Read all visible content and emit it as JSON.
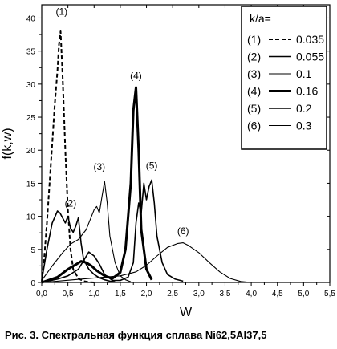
{
  "caption": "Рис. 3. Спектральная функция сплава Ni62,5Al37,5",
  "chart_data": {
    "type": "line",
    "xlabel": "W",
    "ylabel": "f(k,w)",
    "xlim": [
      0,
      5.5
    ],
    "ylim": [
      0,
      42
    ],
    "x_ticks": [
      "0,0",
      "0,5",
      "1,0",
      "1,5",
      "2,0",
      "2,5",
      "3,0",
      "3,5",
      "4,0",
      "4,5",
      "5,0",
      "5,5"
    ],
    "y_ticks": [
      "0",
      "5",
      "10",
      "15",
      "20",
      "25",
      "30",
      "35",
      "40"
    ],
    "legend_title": "k/a=",
    "legend_position": "top-right",
    "grid": false,
    "series": [
      {
        "name": "0.035",
        "label": "(1)",
        "style": "dashed",
        "width": 2.0,
        "x": [
          0,
          0.05,
          0.1,
          0.15,
          0.2,
          0.25,
          0.3,
          0.33,
          0.36,
          0.4,
          0.45,
          0.5,
          0.55,
          0.6,
          0.7,
          0.8,
          0.9,
          1.0
        ],
        "y": [
          0,
          4,
          9,
          15,
          21,
          27,
          32,
          36,
          38,
          31,
          20,
          11,
          5,
          2,
          0.6,
          0.2,
          0.05,
          0
        ]
      },
      {
        "name": "0.055",
        "label": "(2)",
        "style": "solid",
        "width": 1.6,
        "x": [
          0,
          0.1,
          0.2,
          0.3,
          0.35,
          0.45,
          0.5,
          0.55,
          0.6,
          0.65,
          0.7,
          0.75,
          0.8,
          0.9,
          1.0,
          1.1,
          1.2,
          1.3,
          1.4
        ],
        "y": [
          0.3,
          5,
          9,
          10.8,
          10.5,
          9,
          10,
          8.2,
          7.6,
          8.5,
          9.8,
          6,
          3.5,
          2,
          1.2,
          0.7,
          0.4,
          0.2,
          0.1
        ]
      },
      {
        "name": "0.1",
        "label": "(3)",
        "style": "solid",
        "width": 1.1,
        "x": [
          0,
          0.2,
          0.4,
          0.55,
          0.7,
          0.85,
          1.0,
          1.05,
          1.1,
          1.15,
          1.2,
          1.25,
          1.3,
          1.4,
          1.5,
          1.6,
          1.7
        ],
        "y": [
          0.3,
          2.5,
          4.5,
          5.8,
          6.5,
          8,
          11,
          11.5,
          10.5,
          13,
          15.3,
          12,
          7,
          3,
          1,
          0.4,
          0.1
        ]
      },
      {
        "name": "0.16",
        "label": "(4)",
        "style": "solid",
        "width": 3.0,
        "x": [
          0,
          0.3,
          0.5,
          0.65,
          0.75,
          0.85,
          0.95,
          1.05,
          1.2,
          1.35,
          1.5,
          1.6,
          1.7,
          1.75,
          1.8,
          1.85,
          1.9,
          2.0,
          2.1
        ],
        "y": [
          0,
          0.8,
          2,
          2.7,
          3.2,
          3,
          2.5,
          1.8,
          1,
          0.6,
          1.5,
          5,
          15,
          26,
          29.5,
          20,
          8,
          2,
          0.4
        ]
      },
      {
        "name": "0.2",
        "label": "(5)",
        "style": "solid",
        "width": 1.6,
        "x": [
          0,
          0.3,
          0.5,
          0.7,
          0.8,
          0.9,
          1.0,
          1.1,
          1.2,
          1.35,
          1.5,
          1.65,
          1.75,
          1.8,
          1.85,
          1.9,
          1.95,
          2.0,
          2.05,
          2.1,
          2.15,
          2.2,
          2.3,
          2.4,
          2.55,
          2.7
        ],
        "y": [
          0,
          0.5,
          1,
          2,
          3.3,
          4.6,
          4,
          2.8,
          1.2,
          0.3,
          0.3,
          0.8,
          3,
          9,
          12,
          10.5,
          15,
          12.5,
          14.5,
          15.5,
          12,
          7,
          3,
          1.2,
          0.5,
          0.2
        ]
      },
      {
        "name": "0.3",
        "label": "(6)",
        "style": "solid",
        "width": 1.1,
        "x": [
          0,
          0.3,
          0.6,
          0.9,
          1.2,
          1.5,
          1.8,
          2.0,
          2.2,
          2.4,
          2.6,
          2.7,
          2.8,
          3.0,
          3.2,
          3.4,
          3.6,
          3.8,
          4.0
        ],
        "y": [
          0,
          0.2,
          0.4,
          0.6,
          0.8,
          1.0,
          1.6,
          2.6,
          4.0,
          5.3,
          5.9,
          6.0,
          5.6,
          4.5,
          3.0,
          1.6,
          0.6,
          0.15,
          0
        ]
      }
    ],
    "curve_labels": [
      {
        "text": "(1)",
        "x": 0.38,
        "y": 40.5
      },
      {
        "text": "(2)",
        "x": 0.55,
        "y": 11.5
      },
      {
        "text": "(3)",
        "x": 1.1,
        "y": 17.0
      },
      {
        "text": "(4)",
        "x": 1.8,
        "y": 30.8
      },
      {
        "text": "(5)",
        "x": 2.1,
        "y": 17.2
      },
      {
        "text": "(6)",
        "x": 2.7,
        "y": 7.3
      }
    ]
  }
}
